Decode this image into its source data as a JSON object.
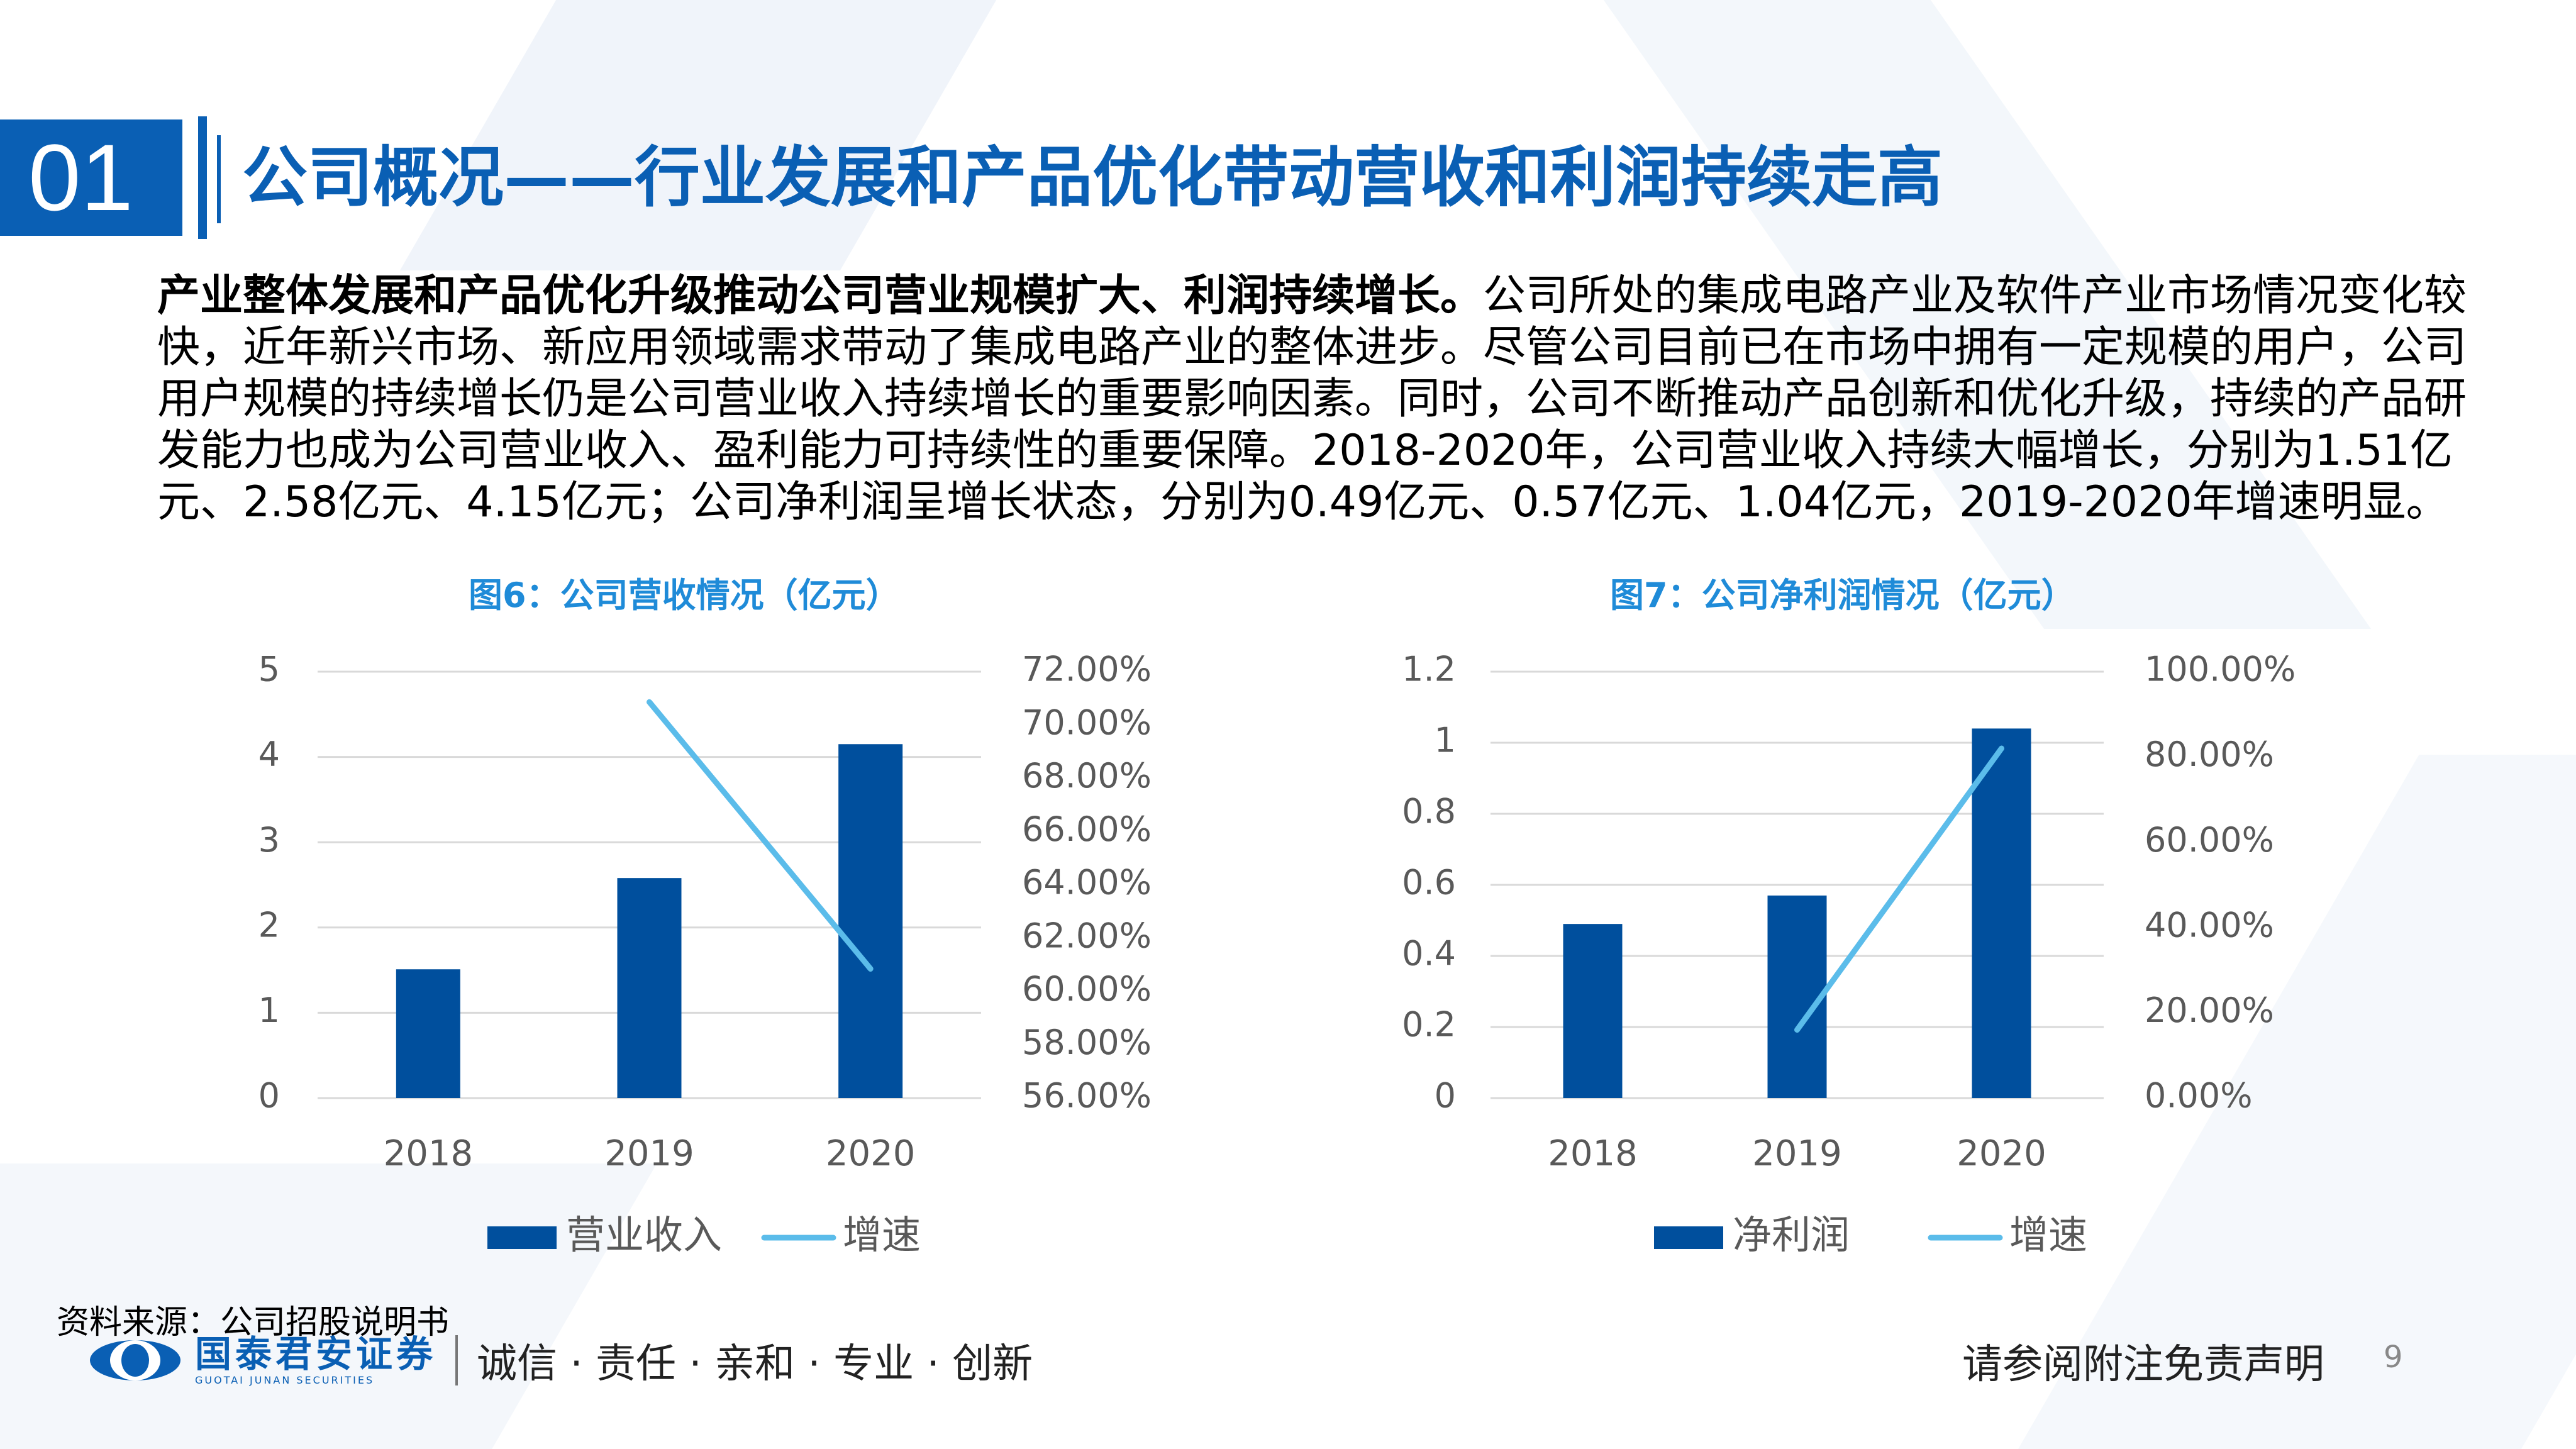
{
  "header": {
    "section_number": "01",
    "title": "公司概况——行业发展和产品优化带动营收和利润持续走高"
  },
  "body": {
    "lead": "产业整体发展和产品优化升级推动公司营业规模扩大、利润持续增长。",
    "text": "公司所处的集成电路产业及软件产业市场情况变化较快，近年新兴市场、新应用领域需求带动了集成电路产业的整体进步。尽管公司目前已在市场中拥有一定规模的用户，公司用户规模的持续增长仍是公司营业收入持续增长的重要影响因素。同时，公司不断推动产品创新和优化升级，持续的产品研发能力也成为公司营业收入、盈利能力可持续性的重要保障。2018-2020年，公司营业收入持续大幅增长，分别为1.51亿元、2.58亿元、4.15亿元；公司净利润呈增长状态，分别为0.49亿元、0.57亿元、1.04亿元，2019-2020年增速明显。"
  },
  "colors": {
    "brand": "#0a5fb4",
    "bar": "#004f9d",
    "line": "#5bbcea",
    "fig_title": "#1f8bd8",
    "grid": "#d9d9d9"
  },
  "chart_data": [
    {
      "type": "bar",
      "title": "图6：公司营收情况（亿元）",
      "categories": [
        "2018",
        "2019",
        "2020"
      ],
      "series": [
        {
          "name": "营业收入",
          "type": "bar",
          "axis": "left",
          "values": [
            1.51,
            2.58,
            4.15
          ]
        },
        {
          "name": "增速",
          "type": "line",
          "axis": "right",
          "values": [
            null,
            0.7086,
            0.6085
          ]
        }
      ],
      "ylim": [
        0,
        5
      ],
      "y_ticks": [
        "0",
        "1",
        "2",
        "3",
        "4",
        "5"
      ],
      "y2lim": [
        0.56,
        0.72
      ],
      "y2_ticks": [
        "56.00%",
        "58.00%",
        "60.00%",
        "62.00%",
        "64.00%",
        "66.00%",
        "68.00%",
        "70.00%",
        "72.00%"
      ],
      "legend": "bottom",
      "grid": true
    },
    {
      "type": "bar",
      "title": "图7：公司净利润情况（亿元）",
      "categories": [
        "2018",
        "2019",
        "2020"
      ],
      "series": [
        {
          "name": "净利润",
          "type": "bar",
          "axis": "left",
          "values": [
            0.49,
            0.57,
            1.04
          ]
        },
        {
          "name": "增速",
          "type": "line",
          "axis": "right",
          "values": [
            null,
            0.16,
            0.82
          ]
        }
      ],
      "ylim": [
        0,
        1.2
      ],
      "y_ticks": [
        "0",
        "0.2",
        "0.4",
        "0.6",
        "0.8",
        "1",
        "1.2"
      ],
      "y2lim": [
        0,
        1
      ],
      "y2_ticks": [
        "0.00%",
        "20.00%",
        "40.00%",
        "60.00%",
        "80.00%",
        "100.00%"
      ],
      "legend": "bottom",
      "grid": true
    }
  ],
  "footer": {
    "source": "资料来源：公司招股说明书",
    "logo_cn": "国泰君安证券",
    "logo_en": "GUOTAI JUNAN SECURITIES",
    "slogan": "诚信 · 责任 · 亲和 · 专业 · 创新",
    "disclaimer": "请参阅附注免责声明",
    "page_number": "9"
  }
}
